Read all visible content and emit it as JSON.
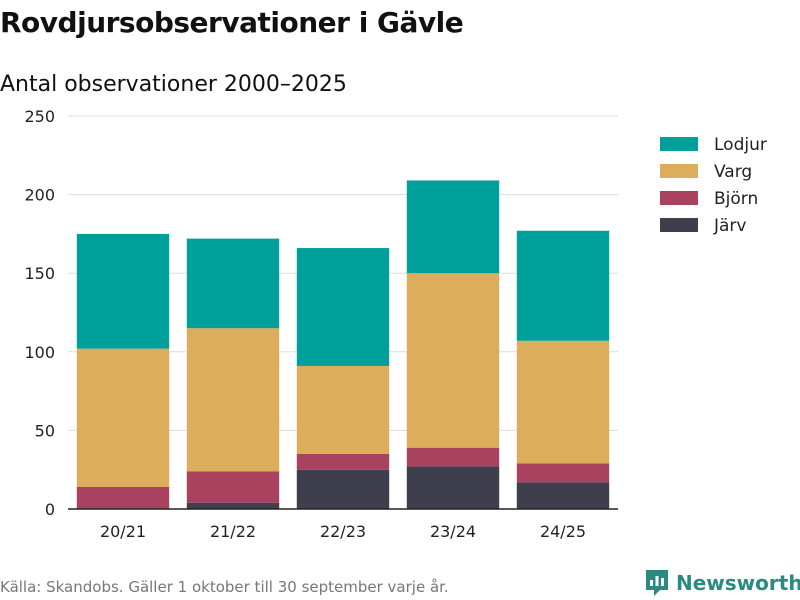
{
  "header": {
    "title": "Rovdjursobservationer i Gävle",
    "subtitle": "Antal observationer 2000–2025"
  },
  "footer": {
    "source": "Källa: Skandobs. Gäller 1 oktober till 30 september varje år.",
    "brand": "Newsworthy",
    "brand_icon": "newsworthy-logo-icon"
  },
  "chart_data": {
    "type": "bar",
    "stacked": true,
    "categories": [
      "20/21",
      "21/22",
      "22/23",
      "23/24",
      "24/25"
    ],
    "series": [
      {
        "name": "Järv",
        "color": "#3f3e4c",
        "values": [
          0,
          4,
          25,
          27,
          17
        ]
      },
      {
        "name": "Björn",
        "color": "#a8425f",
        "values": [
          14,
          20,
          10,
          12,
          12
        ]
      },
      {
        "name": "Varg",
        "color": "#dcad5a",
        "values": [
          88,
          91,
          56,
          111,
          78
        ]
      },
      {
        "name": "Lodjur",
        "color": "#00a09a",
        "values": [
          73,
          57,
          75,
          59,
          70
        ]
      }
    ],
    "legend_order": [
      "Lodjur",
      "Varg",
      "Björn",
      "Järv"
    ],
    "legend_position": "top-right",
    "ylim": [
      0,
      250
    ],
    "yticks": [
      0,
      50,
      100,
      150,
      200,
      250
    ],
    "grid": true
  }
}
